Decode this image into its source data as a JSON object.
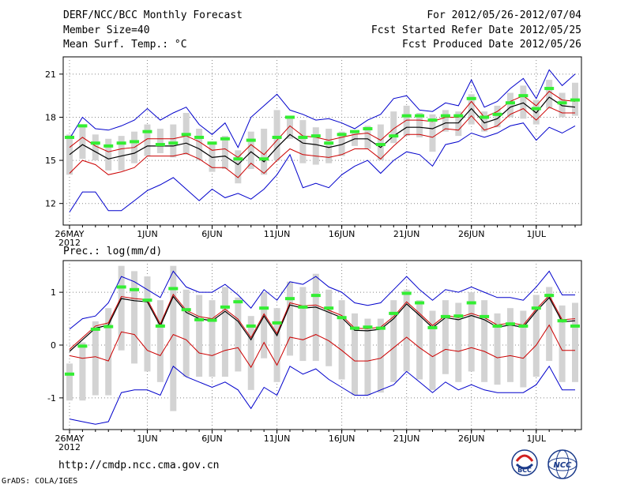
{
  "header": {
    "left": [
      "DERF/NCC/BCC Monthly Forecast",
      "Member Size=40",
      "Mean Surf. Temp.: °C"
    ],
    "right": [
      "For 2012/05/26-2012/07/04",
      "Fcst Started Refer Date 2012/05/25",
      "Fcst Produced Date 2012/05/26"
    ]
  },
  "footer": {
    "url": "http://cmdp.ncc.cma.gov.cn",
    "credit": "GrADS: COLA/IGES",
    "logo_bcc": "BCC",
    "logo_ncc": "NCC"
  },
  "colors": {
    "box": "#d3d3d3",
    "mean": "#000000",
    "inner": "#cc0000",
    "outer": "#0000cc",
    "median": "#33ee33"
  },
  "chart_data": [
    {
      "type": "line",
      "title": "Mean Surf. Temp.: °C",
      "n": 40,
      "ylim": [
        10.5,
        22.2
      ],
      "yticks": [
        12,
        15,
        18,
        21
      ],
      "xticks": [
        {
          "i": 0,
          "label": "26MAY",
          "sub": "2012"
        },
        {
          "i": 6,
          "label": "1JUN"
        },
        {
          "i": 11,
          "label": "6JUN"
        },
        {
          "i": 16,
          "label": "11JUN"
        },
        {
          "i": 21,
          "label": "16JUN"
        },
        {
          "i": 26,
          "label": "21JUN"
        },
        {
          "i": 31,
          "label": "26JUN"
        },
        {
          "i": 36,
          "label": "1JUL"
        }
      ],
      "mean": [
        15.4,
        16.1,
        15.6,
        15.1,
        15.3,
        15.5,
        16.0,
        16.0,
        16.0,
        16.2,
        15.8,
        15.2,
        15.3,
        14.7,
        15.6,
        14.9,
        15.9,
        16.8,
        16.2,
        16.1,
        15.9,
        16.1,
        16.5,
        16.5,
        15.9,
        16.7,
        17.3,
        17.3,
        17.2,
        17.6,
        17.6,
        18.6,
        17.6,
        17.9,
        18.7,
        19.0,
        18.3,
        19.4,
        18.8,
        18.7
      ],
      "inner_upper": [
        15.9,
        16.6,
        16.0,
        15.6,
        15.8,
        15.9,
        16.5,
        16.5,
        16.5,
        16.7,
        16.3,
        15.7,
        15.8,
        15.2,
        16.1,
        15.4,
        16.4,
        17.4,
        16.7,
        16.6,
        16.4,
        16.6,
        16.8,
        16.9,
        16.4,
        17.2,
        17.8,
        17.8,
        17.7,
        18.0,
        18.0,
        19.1,
        18.0,
        18.4,
        19.1,
        19.5,
        18.8,
        19.8,
        19.2,
        19.1
      ],
      "inner_lower": [
        14.1,
        15.0,
        14.7,
        14.0,
        14.2,
        14.5,
        15.3,
        15.3,
        15.3,
        15.5,
        15.1,
        14.5,
        14.5,
        13.8,
        14.8,
        14.1,
        15.0,
        15.8,
        15.4,
        15.3,
        15.2,
        15.4,
        15.8,
        15.8,
        15.1,
        16.0,
        16.8,
        16.8,
        16.6,
        17.2,
        17.1,
        18.1,
        17.1,
        17.4,
        18.2,
        18.6,
        17.8,
        18.7,
        18.3,
        18.3
      ],
      "outer_upper": [
        16.5,
        18.0,
        17.2,
        17.1,
        17.4,
        17.8,
        18.6,
        17.8,
        18.3,
        18.7,
        17.5,
        16.8,
        17.6,
        15.9,
        18.0,
        18.8,
        19.6,
        18.5,
        18.2,
        17.8,
        17.9,
        17.6,
        17.2,
        17.8,
        18.2,
        19.3,
        19.5,
        18.5,
        18.4,
        19.0,
        18.8,
        20.6,
        18.7,
        19.1,
        20.0,
        20.7,
        19.3,
        21.3,
        20.2,
        21.0
      ],
      "outer_lower": [
        11.4,
        12.8,
        12.8,
        11.5,
        11.5,
        12.2,
        12.9,
        13.3,
        13.8,
        13.0,
        12.2,
        13.0,
        12.4,
        12.7,
        12.3,
        13.0,
        14.0,
        15.4,
        13.1,
        13.4,
        13.1,
        14.0,
        14.6,
        15.0,
        14.1,
        15.0,
        15.6,
        15.4,
        14.6,
        16.1,
        16.3,
        16.9,
        16.6,
        16.9,
        17.4,
        17.6,
        16.4,
        17.3,
        16.9,
        17.4
      ],
      "box_upper": [
        16.8,
        17.3,
        16.8,
        16.5,
        16.7,
        17.0,
        17.5,
        17.2,
        17.5,
        18.3,
        17.2,
        16.3,
        16.7,
        15.7,
        17.0,
        17.2,
        18.5,
        17.9,
        17.8,
        17.3,
        17.2,
        17.0,
        17.0,
        17.4,
        17.5,
        18.4,
        18.8,
        18.3,
        18.2,
        18.5,
        18.4,
        19.6,
        18.4,
        18.8,
        19.7,
        20.2,
        19.2,
        20.6,
        19.7,
        20.4
      ],
      "box_lower": [
        14.0,
        15.1,
        15.0,
        14.3,
        14.3,
        14.8,
        15.3,
        15.5,
        15.2,
        15.4,
        15.0,
        14.2,
        14.4,
        13.4,
        14.4,
        14.0,
        15.0,
        16.5,
        14.8,
        14.7,
        14.8,
        15.3,
        16.0,
        15.8,
        15.0,
        16.2,
        16.7,
        16.6,
        15.6,
        17.0,
        16.7,
        17.5,
        17.0,
        17.3,
        18.0,
        17.9,
        17.5,
        18.6,
        18.0,
        18.1
      ],
      "median": [
        16.6,
        17.4,
        16.2,
        16.0,
        16.2,
        16.3,
        17.0,
        16.1,
        16.2,
        16.8,
        16.6,
        16.2,
        16.5,
        15.1,
        16.4,
        15.1,
        16.6,
        18.0,
        16.6,
        16.7,
        16.2,
        16.8,
        17.0,
        17.2,
        16.1,
        16.7,
        18.1,
        18.1,
        17.8,
        18.1,
        18.1,
        19.3,
        18.0,
        18.2,
        19.0,
        19.5,
        18.6,
        20.0,
        19.0,
        19.2
      ]
    },
    {
      "type": "line",
      "title": "Prec.: log(mm/d)",
      "n": 40,
      "ylim": [
        -1.6,
        1.6
      ],
      "yticks": [
        -1,
        0,
        1
      ],
      "xticks": [
        {
          "i": 0,
          "label": "26MAY",
          "sub": "2012"
        },
        {
          "i": 6,
          "label": "1JUN"
        },
        {
          "i": 11,
          "label": "6JUN"
        },
        {
          "i": 16,
          "label": "11JUN"
        },
        {
          "i": 21,
          "label": "16JUN"
        },
        {
          "i": 26,
          "label": "21JUN"
        },
        {
          "i": 31,
          "label": "26JUN"
        },
        {
          "i": 36,
          "label": "1JUL"
        }
      ],
      "mean": [
        -0.12,
        0.1,
        0.32,
        0.38,
        0.88,
        0.84,
        0.82,
        0.36,
        0.92,
        0.62,
        0.5,
        0.46,
        0.64,
        0.45,
        0.1,
        0.55,
        0.18,
        0.76,
        0.7,
        0.72,
        0.62,
        0.52,
        0.28,
        0.27,
        0.3,
        0.5,
        0.78,
        0.56,
        0.33,
        0.52,
        0.48,
        0.56,
        0.48,
        0.34,
        0.38,
        0.34,
        0.64,
        0.9,
        0.44,
        0.46
      ],
      "inner_upper": [
        -0.08,
        0.14,
        0.36,
        0.42,
        0.92,
        0.88,
        0.86,
        0.4,
        0.96,
        0.66,
        0.54,
        0.5,
        0.68,
        0.49,
        0.14,
        0.59,
        0.22,
        0.8,
        0.74,
        0.76,
        0.66,
        0.56,
        0.32,
        0.31,
        0.34,
        0.54,
        0.82,
        0.6,
        0.37,
        0.56,
        0.52,
        0.6,
        0.52,
        0.38,
        0.42,
        0.38,
        0.68,
        0.94,
        0.48,
        0.5
      ],
      "inner_lower": [
        -0.2,
        -0.25,
        -0.22,
        -0.3,
        0.25,
        0.2,
        -0.1,
        -0.2,
        0.2,
        0.1,
        -0.15,
        -0.2,
        -0.1,
        -0.05,
        -0.42,
        0.05,
        -0.38,
        0.15,
        0.1,
        0.2,
        0.08,
        -0.1,
        -0.3,
        -0.3,
        -0.25,
        -0.05,
        0.15,
        -0.05,
        -0.22,
        -0.08,
        -0.12,
        -0.05,
        -0.12,
        -0.24,
        -0.2,
        -0.25,
        0.0,
        0.38,
        -0.1,
        -0.1
      ],
      "outer_upper": [
        0.3,
        0.5,
        0.55,
        0.8,
        1.3,
        1.2,
        1.05,
        0.9,
        1.4,
        1.1,
        1.0,
        1.0,
        1.15,
        0.95,
        0.7,
        1.05,
        0.85,
        1.2,
        1.15,
        1.3,
        1.1,
        1.0,
        0.8,
        0.75,
        0.8,
        1.05,
        1.3,
        1.05,
        0.85,
        1.05,
        1.0,
        1.1,
        1.0,
        0.9,
        0.9,
        0.85,
        1.1,
        1.4,
        0.95,
        0.95
      ],
      "outer_lower": [
        -1.4,
        -1.45,
        -1.5,
        -1.45,
        -0.9,
        -0.85,
        -0.85,
        -0.95,
        -0.4,
        -0.6,
        -0.7,
        -0.8,
        -0.7,
        -0.85,
        -1.2,
        -0.8,
        -0.95,
        -0.4,
        -0.55,
        -0.45,
        -0.65,
        -0.8,
        -0.95,
        -0.95,
        -0.85,
        -0.75,
        -0.5,
        -0.7,
        -0.9,
        -0.7,
        -0.85,
        -0.75,
        -0.85,
        -0.9,
        -0.9,
        -0.9,
        -0.75,
        -0.4,
        -0.85,
        -0.85
      ],
      "box_upper": [
        -0.35,
        0.05,
        0.45,
        0.7,
        1.5,
        1.4,
        1.3,
        0.85,
        1.5,
        1.05,
        0.95,
        0.85,
        1.1,
        0.9,
        0.55,
        1.0,
        0.7,
        1.2,
        1.1,
        1.35,
        1.05,
        0.85,
        0.6,
        0.5,
        0.5,
        0.85,
        1.05,
        0.85,
        0.65,
        0.85,
        0.8,
        1.0,
        0.85,
        0.6,
        0.7,
        0.65,
        0.95,
        1.1,
        0.75,
        0.8
      ],
      "box_lower": [
        -1.05,
        -1.05,
        -0.95,
        -0.95,
        -0.1,
        -0.35,
        -0.5,
        -0.7,
        -1.25,
        -0.6,
        -0.6,
        -0.6,
        -0.6,
        -0.5,
        -0.85,
        -0.25,
        -0.7,
        -0.2,
        -0.3,
        -0.3,
        -0.4,
        -0.65,
        -0.95,
        -0.95,
        -0.9,
        -0.7,
        -0.5,
        -0.65,
        -0.85,
        -0.55,
        -0.7,
        -0.5,
        -0.7,
        -0.75,
        -0.7,
        -0.8,
        -0.6,
        -0.3,
        -0.7,
        -0.7
      ],
      "median": [
        -0.55,
        -0.02,
        0.3,
        0.35,
        1.1,
        1.05,
        0.85,
        0.36,
        1.07,
        0.67,
        0.48,
        0.47,
        0.72,
        0.82,
        0.36,
        0.7,
        0.42,
        0.88,
        0.72,
        0.94,
        0.7,
        0.52,
        0.32,
        0.34,
        0.32,
        0.6,
        0.98,
        0.8,
        0.33,
        0.54,
        0.55,
        0.8,
        0.54,
        0.36,
        0.4,
        0.36,
        0.7,
        0.94,
        0.46,
        0.36
      ]
    }
  ]
}
